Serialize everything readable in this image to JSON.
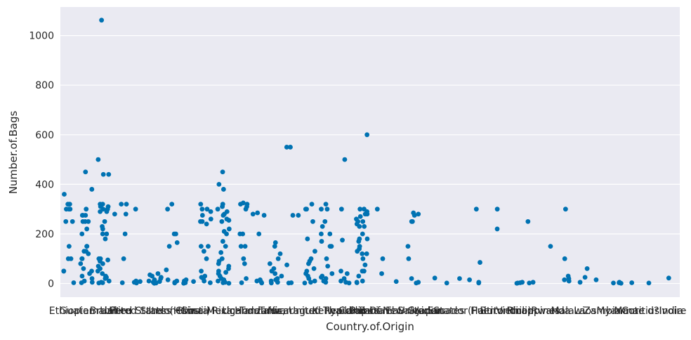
{
  "chart_data": {
    "type": "scatter",
    "style": "strip",
    "xlabel": "Country.of.Origin",
    "ylabel": "Number.of.Bags",
    "ylim": [
      -55,
      1115
    ],
    "yticks": [
      0,
      200,
      400,
      600,
      800,
      1000
    ],
    "grid": true,
    "background": "#eaeaf2",
    "point_color": "#0072b2",
    "categories": [
      "Ethiopia",
      "Guatemala",
      "Brazil",
      "Peru",
      "United States",
      "United States (Hawaii)",
      "Indonesia",
      "China",
      "Costa Rica",
      "Mexico",
      "Uganda",
      "Honduras",
      "Taiwan",
      "Nicaragua",
      "Tanzania, United Republic Of",
      "Kenya",
      "Thailand",
      "Colombia",
      "Panama",
      "Papua New Guinea",
      "El Salvador",
      "Japan",
      "Ecuador",
      "United States (Puerto Rico)",
      "Haiti",
      "Burundi",
      "Vietnam",
      "Philippines",
      "Rwanda",
      "Malawi",
      "Laos",
      "Zambia",
      "Myanmar",
      "Mauritius",
      "Cote d?Ivoire",
      "India"
    ],
    "values": [
      [
        300,
        320,
        360,
        250,
        100,
        150,
        50,
        3,
        300,
        320,
        300,
        250,
        100,
        50
      ],
      [
        300,
        275,
        250,
        200,
        150,
        130,
        100,
        80,
        50,
        20,
        3,
        450,
        380,
        275,
        250,
        220,
        120,
        60,
        30,
        5,
        275,
        250,
        150,
        130,
        100,
        40,
        10
      ],
      [
        1062,
        500,
        440,
        320,
        310,
        300,
        290,
        250,
        230,
        200,
        180,
        100,
        90,
        80,
        70,
        50,
        40,
        30,
        20,
        10,
        5,
        3,
        440,
        320,
        300,
        220,
        200,
        100,
        60,
        25,
        2,
        310,
        290,
        95
      ],
      [
        320,
        280,
        200,
        100,
        3,
        320,
        280
      ],
      [
        300,
        10,
        5,
        2,
        8
      ],
      [
        40,
        30,
        20,
        10,
        5,
        2,
        1,
        35,
        25,
        15,
        8,
        3
      ],
      [
        320,
        300,
        200,
        165,
        150,
        55,
        15,
        5,
        2,
        200,
        10
      ],
      [
        15,
        8,
        3,
        1,
        10
      ],
      [
        320,
        300,
        290,
        260,
        250,
        240,
        150,
        130,
        100,
        50,
        30,
        20,
        10,
        3,
        300,
        275,
        250,
        150,
        25
      ],
      [
        450,
        400,
        380,
        320,
        300,
        290,
        275,
        260,
        250,
        220,
        200,
        150,
        125,
        100,
        80,
        60,
        50,
        40,
        30,
        20,
        10,
        5,
        3,
        310,
        280,
        255,
        210,
        170,
        90,
        70,
        45,
        15,
        1
      ],
      [
        325,
        320,
        310,
        300,
        200,
        150,
        100,
        80,
        20,
        3,
        320,
        200,
        150
      ],
      [
        285,
        280,
        275,
        200,
        15,
        10,
        5,
        2
      ],
      [
        165,
        150,
        120,
        100,
        80,
        60,
        40,
        30,
        20,
        10,
        5,
        2,
        50,
        15
      ],
      [
        550,
        550,
        275,
        275,
        75,
        3,
        2
      ],
      [
        320,
        300,
        250,
        180,
        130,
        100,
        80,
        60,
        40,
        30,
        20,
        10,
        5,
        2,
        300,
        90,
        50
      ],
      [
        320,
        300,
        250,
        200,
        170,
        150,
        100,
        70,
        40,
        30,
        20,
        10,
        5,
        300,
        230,
        200,
        150,
        25
      ],
      [
        500,
        300,
        175,
        50,
        40,
        20,
        10,
        5,
        2
      ],
      [
        600,
        300,
        290,
        280,
        270,
        260,
        250,
        240,
        230,
        200,
        180,
        170,
        150,
        140,
        130,
        120,
        100,
        75,
        50,
        30,
        10,
        3,
        300,
        280,
        250,
        230,
        180,
        120,
        50,
        5
      ],
      [
        300,
        100,
        40
      ],
      [
        8
      ],
      [
        285,
        275,
        250,
        150,
        100,
        20,
        5,
        2,
        280,
        250
      ],
      [
        22
      ],
      [
        2
      ],
      [
        20,
        15
      ],
      [
        85,
        5,
        2,
        300
      ],
      [
        300,
        220
      ],
      [
        5,
        3,
        2,
        1
      ],
      [
        250,
        5,
        2
      ],
      [
        150
      ],
      [
        300,
        100,
        30,
        20,
        15,
        10
      ],
      [
        60,
        25,
        5
      ],
      [
        15
      ],
      [
        5,
        3,
        2,
        1
      ],
      [
        3
      ],
      [
        2
      ],
      [
        22
      ]
    ]
  }
}
